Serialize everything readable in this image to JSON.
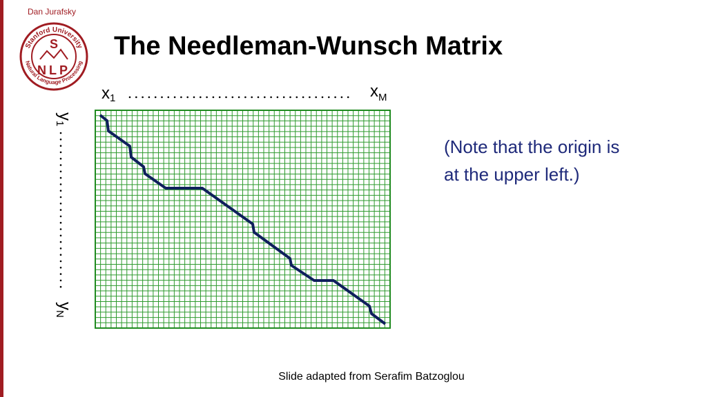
{
  "header": {
    "author": "Dan Jurafsky",
    "title": "The Needleman-Wunsch Matrix"
  },
  "logo": {
    "ring_top": "Stanford University",
    "ring_bottom": "Natural Language Processing",
    "center_top": "S",
    "center_bottom": "NLP"
  },
  "matrix": {
    "x_start": {
      "base": "x",
      "sub": "1"
    },
    "x_end": {
      "base": "x",
      "sub": "M"
    },
    "y_start": {
      "base": "y",
      "sub": "1"
    },
    "y_end": {
      "base": "y",
      "sub": "N"
    }
  },
  "note": {
    "line1": "(Note that the origin is",
    "line2": "at the upper left.)"
  },
  "footer": "Slide adapted from Serafim Batzoglou"
}
